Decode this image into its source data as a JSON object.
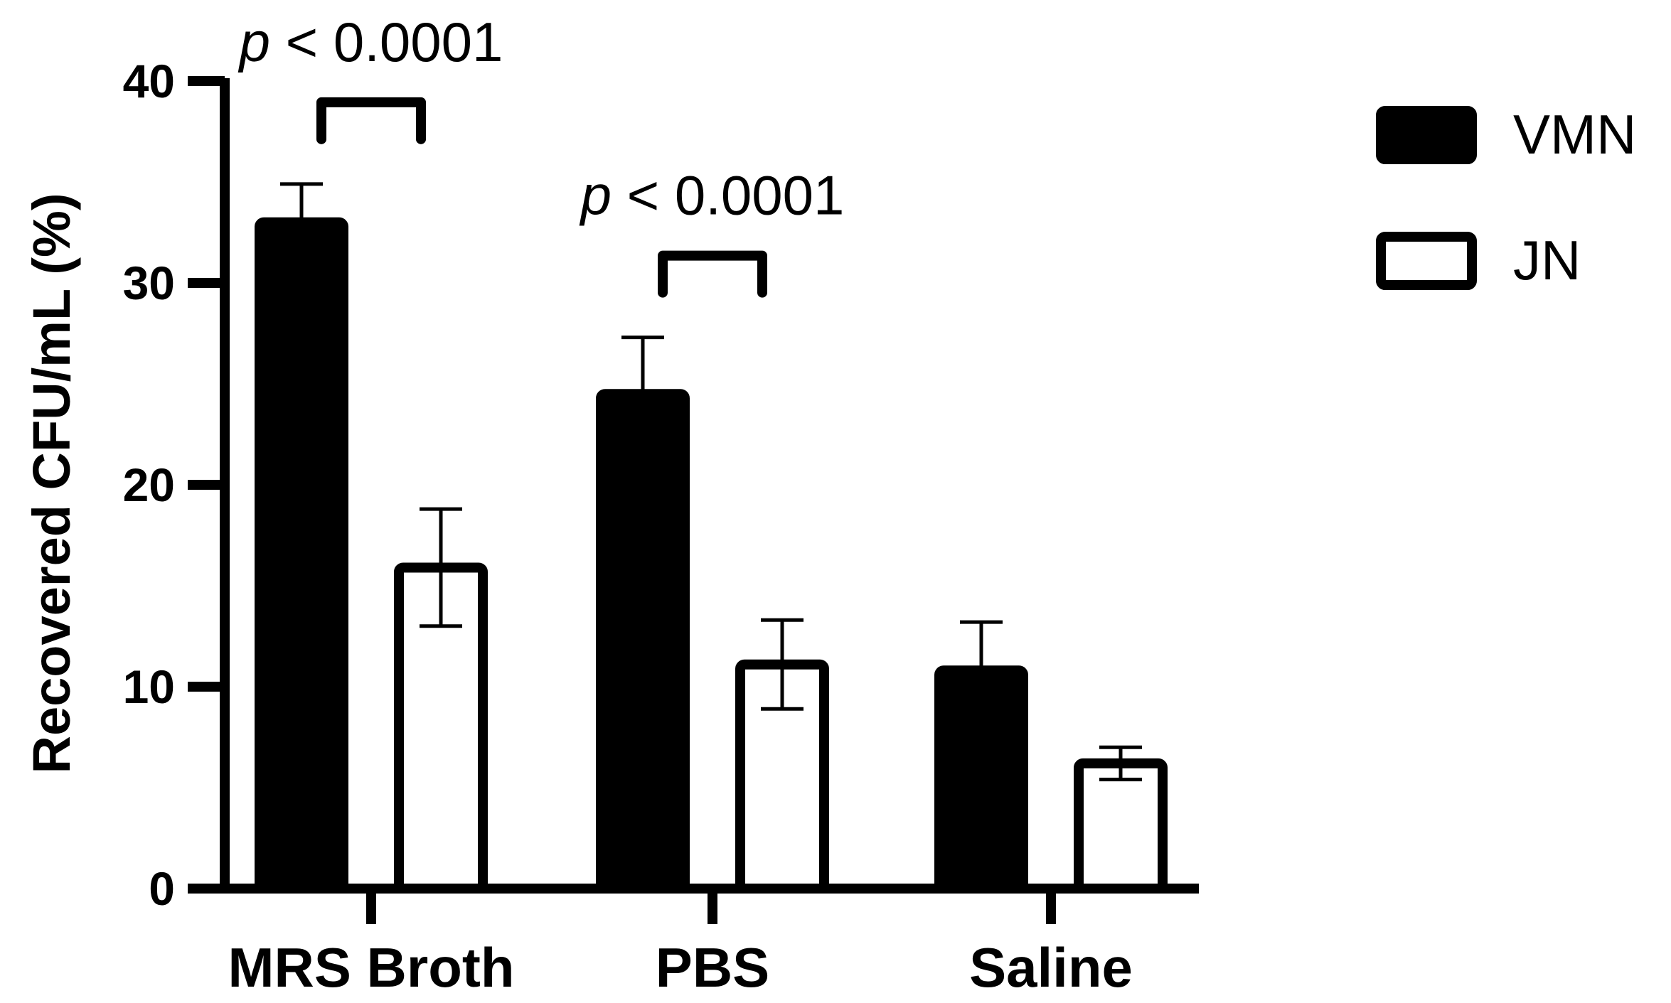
{
  "chart_data": {
    "type": "bar",
    "ylabel": "Recovered CFU/mL (%)",
    "ylim": [
      0,
      40
    ],
    "yticks": [
      0,
      10,
      20,
      30,
      40
    ],
    "categories": [
      "MRS Broth",
      "PBS",
      "Saline"
    ],
    "series": [
      {
        "name": "VMN",
        "values": [
          33.0,
          24.5,
          10.8
        ],
        "errors": [
          1.9,
          2.8,
          2.4
        ],
        "fill": "#000000"
      },
      {
        "name": "JN",
        "values": [
          15.9,
          11.1,
          6.2
        ],
        "errors": [
          2.9,
          2.2,
          0.8
        ],
        "fill": "#ffffff"
      }
    ],
    "annotations": [
      {
        "category": "MRS Broth",
        "prefix": "p",
        "text": "< 0.0001"
      },
      {
        "category": "PBS",
        "prefix": "p",
        "text": "< 0.0001"
      }
    ],
    "legend": {
      "position": "top-right"
    },
    "grid": false
  }
}
